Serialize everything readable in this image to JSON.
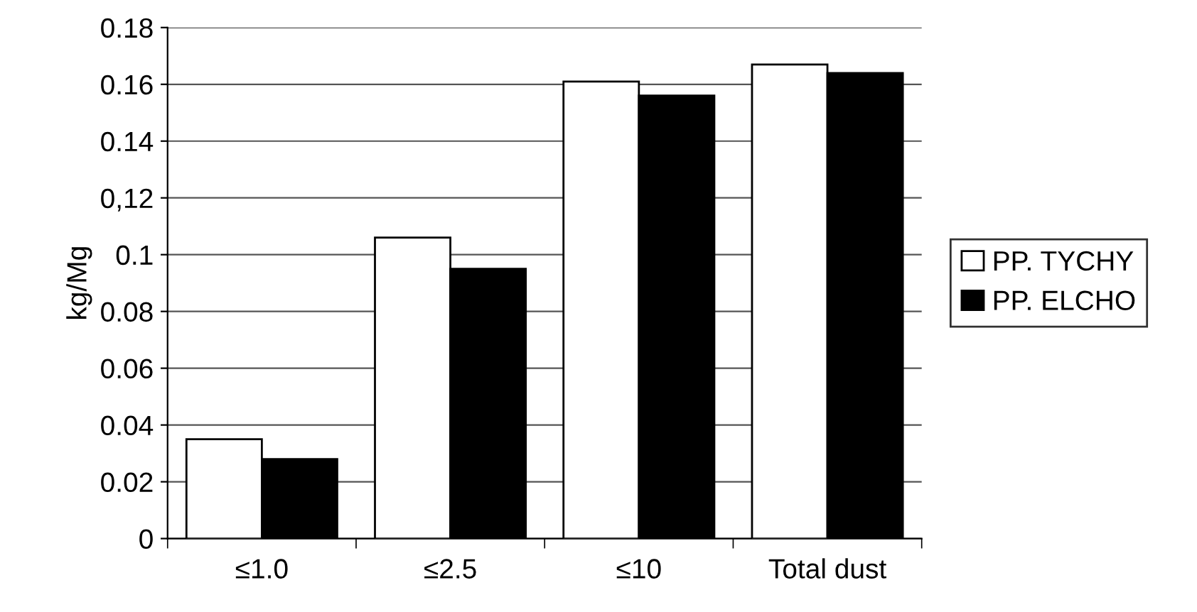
{
  "chart_data": {
    "type": "bar",
    "ylabel": "kg/Mg",
    "categories": [
      "≤1.0",
      "≤2.5",
      "≤10",
      "Total dust"
    ],
    "series": [
      {
        "name": "PP. TYCHY",
        "color": "#ffffff",
        "values": [
          0.035,
          0.106,
          0.161,
          0.167
        ]
      },
      {
        "name": "PP. ELCHO",
        "color": "#000000",
        "values": [
          0.028,
          0.095,
          0.156,
          0.164
        ]
      }
    ],
    "ylim": [
      0,
      0.18
    ],
    "yticks": [
      0,
      0.02,
      0.04,
      0.06,
      0.08,
      {
        "value": 0.1,
        "label": "0.1"
      },
      {
        "value": 0.12,
        "label": "0,12"
      },
      0.14,
      0.16,
      0.18
    ],
    "grid": "y",
    "legend": "right"
  }
}
